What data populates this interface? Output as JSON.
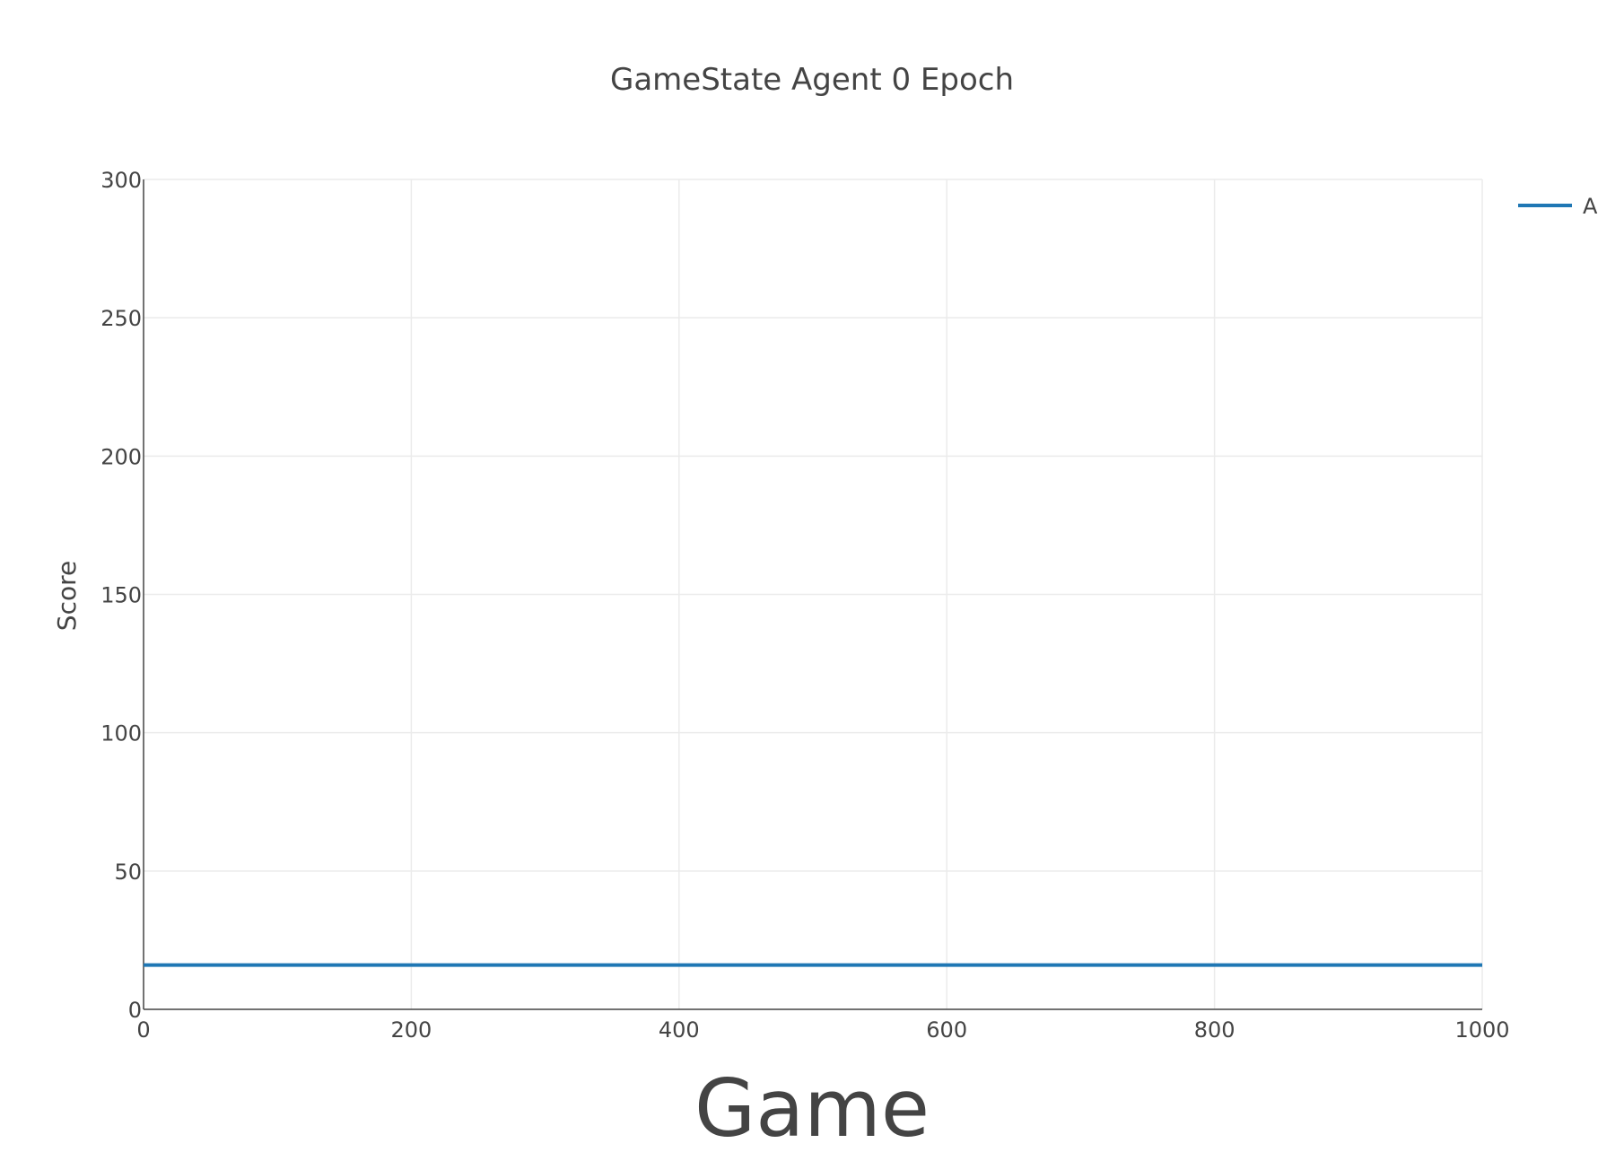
{
  "chart_data": {
    "type": "line",
    "title": "GameState Agent 0 Epoch",
    "xlabel": "Game",
    "ylabel": "Score",
    "xlim": [
      0,
      1000
    ],
    "ylim": [
      0,
      300
    ],
    "x_ticks": [
      0,
      200,
      400,
      600,
      800,
      1000
    ],
    "y_ticks": [
      0,
      50,
      100,
      150,
      200,
      250,
      300
    ],
    "grid": true,
    "legend_position": "top-right",
    "series": [
      {
        "name": "A",
        "color": "#1f77b4",
        "x": [
          0,
          1000
        ],
        "y": [
          16,
          16
        ]
      }
    ]
  }
}
